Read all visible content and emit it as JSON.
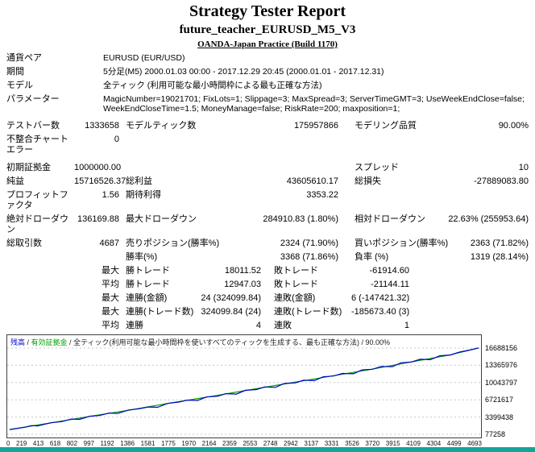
{
  "header": {
    "title": "Strategy Tester Report",
    "ea_name": "future_teacher_EURUSD_M5_V3",
    "broker": "OANDA-Japan Practice (Build 1170)"
  },
  "info": {
    "symbol": {
      "label": "通貨ペア",
      "value": "EURUSD (EUR/USD)"
    },
    "period": {
      "label": "期間",
      "value": "5分足(M5) 2000.01.03 00:00 - 2017.12.29 20:45 (2000.01.01 - 2017.12.31)"
    },
    "model": {
      "label": "モデル",
      "value": "全ティック (利用可能な最小時間枠による最も正確な方法)"
    },
    "parameters": {
      "label": "パラメーター",
      "value": "MagicNumber=19021701; FixLots=1; Slippage=3; MaxSpread=3; ServerTimeGMT=3; UseWeekEndClose=false; WeekEndCloseTime=1.5; MoneyManage=false; RiskRate=200; maxposition=1;"
    }
  },
  "stats": {
    "bars": {
      "label": "テストバー数",
      "value": "1333658"
    },
    "ticks": {
      "label": "モデルティック数",
      "value": "175957866"
    },
    "quality": {
      "label": "モデリング品質",
      "value": "90.00%"
    },
    "mismatched": {
      "label": "不整合チャートエラー",
      "value": "0"
    },
    "deposit": {
      "label": "初期証拠金",
      "value": "1000000.00"
    },
    "spread": {
      "label": "スプレッド",
      "value": "10"
    },
    "net_profit": {
      "label": "純益",
      "value": "15716526.37"
    },
    "gross_profit": {
      "label": "総利益",
      "value": "43605610.17"
    },
    "gross_loss": {
      "label": "総損失",
      "value": "-27889083.80"
    },
    "profit_factor": {
      "label": "プロフィットファクタ",
      "value": "1.56"
    },
    "expected_payoff": {
      "label": "期待利得",
      "value": "3353.22"
    },
    "abs_dd": {
      "label": "絶対ドローダウン",
      "value": "136169.88"
    },
    "max_dd": {
      "label": "最大ドローダウン",
      "value": "284910.83 (1.80%)"
    },
    "rel_dd": {
      "label": "相対ドローダウン",
      "value": "22.63% (255953.64)"
    },
    "total_trades": {
      "label": "総取引数",
      "value": "4687"
    },
    "short_pos": {
      "label": "売りポジション(勝率%)",
      "value": "2324 (71.90%)"
    },
    "long_pos": {
      "label": "買いポジション(勝率%)",
      "value": "2363 (71.82%)"
    },
    "profit_trades": {
      "label": "勝率(%)",
      "value": "3368 (71.86%)"
    },
    "loss_trades": {
      "label": "負率 (%)",
      "value": "1319 (28.14%)"
    },
    "largest": {
      "label": "最大"
    },
    "average": {
      "label": "平均"
    },
    "largest_profit": {
      "label": "勝トレード",
      "value": "18011.52"
    },
    "largest_loss": {
      "label": "敗トレード",
      "value": "-61914.60"
    },
    "avg_profit": {
      "label": "勝トレード",
      "value": "12947.03"
    },
    "avg_loss": {
      "label": "敗トレード",
      "value": "-21144.11"
    },
    "max_conwins": {
      "label": "連勝(金額)",
      "value": "24 (324099.84)"
    },
    "max_conlosses": {
      "label": "連敗(金額)",
      "value": "6 (-147421.32)"
    },
    "max_conprofit": {
      "label": "連勝(トレード数)",
      "value": "324099.84 (24)"
    },
    "max_conloss": {
      "label": "連敗(トレード数)",
      "value": "-185673.40 (3)"
    },
    "avg_conwins": {
      "label": "連勝",
      "value": "4"
    },
    "avg_conlosses": {
      "label": "連敗",
      "value": "1"
    }
  },
  "chart_legend": {
    "balance": "残高",
    "sep1": " / ",
    "equity": "有効証拠金",
    "rest": " / 全ティック(利用可能な最小時間枠を使いすべてのティックを生成する、最も正確な方法) / 90.00%"
  },
  "colors": {
    "balance_line": "#0000cc",
    "equity_line": "#00a000",
    "grid": "#c8c8c8",
    "chart_border": "#404040",
    "bottom_bar": "#17a398"
  },
  "chart_data": {
    "type": "line",
    "title": "",
    "xlabel": "",
    "ylabel": "",
    "grid": true,
    "legend_position": "top-left",
    "x_range": [
      0,
      4693
    ],
    "y_range": [
      77258,
      16688156
    ],
    "x_ticks": [
      "0",
      "219",
      "413",
      "618",
      "802",
      "997",
      "1192",
      "1386",
      "1581",
      "1775",
      "1970",
      "2164",
      "2359",
      "2553",
      "2748",
      "2942",
      "3137",
      "3331",
      "3526",
      "3720",
      "3915",
      "4109",
      "4304",
      "4499",
      "4693"
    ],
    "y_ticks": [
      "16688156",
      "13365976",
      "10043797",
      "6721617",
      "3399438",
      "77258"
    ],
    "series": [
      {
        "id": "equity",
        "name": "有効証拠金",
        "color": "#00a000",
        "points": [
          [
            0,
            1000000
          ],
          [
            400,
            2230000
          ],
          [
            800,
            3530000
          ],
          [
            1200,
            4740000
          ],
          [
            1600,
            6080000
          ],
          [
            2000,
            7330000
          ],
          [
            2400,
            8630000
          ],
          [
            2800,
            9940000
          ],
          [
            3200,
            11220000
          ],
          [
            3600,
            12520000
          ],
          [
            4000,
            13960000
          ],
          [
            4400,
            15330000
          ],
          [
            4693,
            16700000
          ]
        ]
      },
      {
        "id": "balance",
        "name": "残高",
        "color": "#0000cc",
        "points": [
          [
            0,
            1000000
          ],
          [
            150,
            1430000
          ],
          [
            219,
            1760000
          ],
          [
            280,
            1690000
          ],
          [
            413,
            2300000
          ],
          [
            520,
            2520000
          ],
          [
            618,
            3010000
          ],
          [
            700,
            2950000
          ],
          [
            802,
            3560000
          ],
          [
            900,
            3700000
          ],
          [
            997,
            4180000
          ],
          [
            1080,
            4090000
          ],
          [
            1192,
            4760000
          ],
          [
            1300,
            5000000
          ],
          [
            1386,
            5340000
          ],
          [
            1480,
            5280000
          ],
          [
            1581,
            6020000
          ],
          [
            1700,
            6300000
          ],
          [
            1775,
            6650000
          ],
          [
            1880,
            6590000
          ],
          [
            1970,
            7260000
          ],
          [
            2080,
            7400000
          ],
          [
            2164,
            7900000
          ],
          [
            2270,
            7830000
          ],
          [
            2359,
            8560000
          ],
          [
            2470,
            8700000
          ],
          [
            2553,
            9200000
          ],
          [
            2660,
            9120000
          ],
          [
            2748,
            9860000
          ],
          [
            2860,
            10000000
          ],
          [
            2942,
            10500000
          ],
          [
            3050,
            10420000
          ],
          [
            3137,
            11150000
          ],
          [
            3240,
            11300000
          ],
          [
            3331,
            11800000
          ],
          [
            3440,
            11730000
          ],
          [
            3526,
            12480000
          ],
          [
            3630,
            12600000
          ],
          [
            3720,
            13150000
          ],
          [
            3830,
            13080000
          ],
          [
            3915,
            13850000
          ],
          [
            4020,
            14000000
          ],
          [
            4109,
            14530000
          ],
          [
            4210,
            14450000
          ],
          [
            4304,
            15200000
          ],
          [
            4410,
            15350000
          ],
          [
            4499,
            15900000
          ],
          [
            4600,
            16300000
          ],
          [
            4693,
            16716526
          ]
        ]
      }
    ]
  }
}
